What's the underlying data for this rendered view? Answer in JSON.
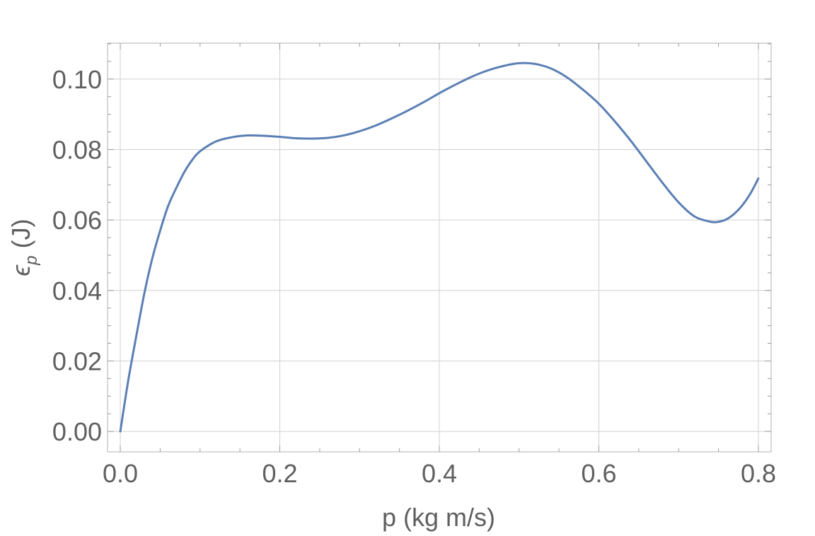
{
  "chart_data": {
    "type": "line",
    "title": "",
    "xlabel": "p (kg m/s)",
    "ylabel": {
      "symbol": "ϵ",
      "subscript": "p",
      "unit": " (J)"
    },
    "xlim": [
      -0.016,
      0.816
    ],
    "ylim": [
      -0.0058,
      0.1102
    ],
    "x_ticks": [
      0.0,
      0.2,
      0.4,
      0.6,
      0.8
    ],
    "x_tick_labels": [
      "0.0",
      "0.2",
      "0.4",
      "0.6",
      "0.8"
    ],
    "y_ticks": [
      0.0,
      0.02,
      0.04,
      0.06,
      0.08,
      0.1
    ],
    "y_tick_labels": [
      "0.00",
      "0.02",
      "0.04",
      "0.06",
      "0.08",
      "0.10"
    ],
    "grid": true,
    "line_color": "#5b7fb4",
    "series": [
      {
        "x": [
          0.0,
          0.01,
          0.02,
          0.03,
          0.04,
          0.05,
          0.06,
          0.07,
          0.08,
          0.09,
          0.1,
          0.12,
          0.14,
          0.16,
          0.18,
          0.2,
          0.22,
          0.24,
          0.26,
          0.28,
          0.3,
          0.32,
          0.34,
          0.36,
          0.38,
          0.4,
          0.42,
          0.44,
          0.46,
          0.48,
          0.5,
          0.52,
          0.54,
          0.56,
          0.58,
          0.6,
          0.62,
          0.64,
          0.66,
          0.68,
          0.7,
          0.72,
          0.74,
          0.75,
          0.76,
          0.77,
          0.78,
          0.79,
          0.8
        ],
        "y": [
          0.0,
          0.0145,
          0.027,
          0.039,
          0.049,
          0.057,
          0.064,
          0.069,
          0.0735,
          0.077,
          0.0795,
          0.0823,
          0.0835,
          0.084,
          0.0839,
          0.0836,
          0.0832,
          0.0831,
          0.0833,
          0.084,
          0.0852,
          0.0868,
          0.0888,
          0.091,
          0.0934,
          0.096,
          0.0984,
          0.1006,
          0.1024,
          0.1037,
          0.1045,
          0.1043,
          0.103,
          0.1005,
          0.097,
          0.093,
          0.088,
          0.0825,
          0.0765,
          0.0705,
          0.065,
          0.061,
          0.0595,
          0.0595,
          0.0602,
          0.0618,
          0.0642,
          0.0675,
          0.0718
        ]
      }
    ]
  }
}
